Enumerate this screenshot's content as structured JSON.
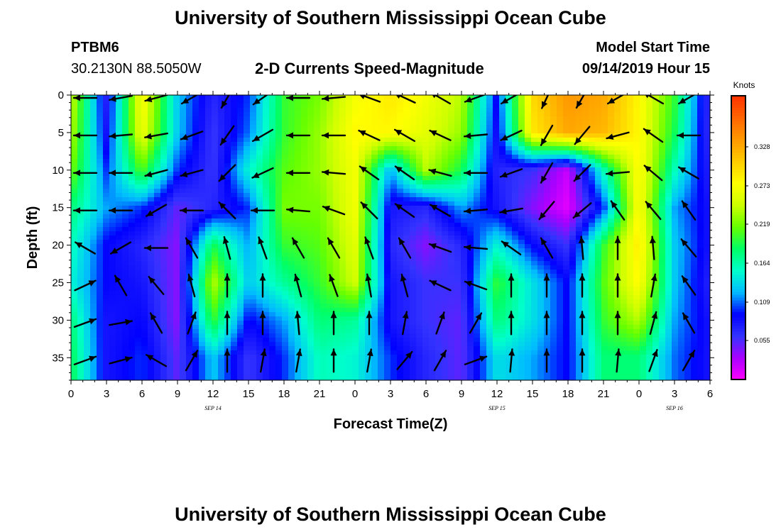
{
  "header": {
    "title": "University of Southern Mississippi Ocean Cube",
    "station": "PTBM6",
    "coords": "30.2130N 88.5050W",
    "plot_title": "2-D Currents Speed-Magnitude",
    "model_start_label": "Model Start Time",
    "model_start_value": "09/14/2019 Hour 15"
  },
  "footer": {
    "title": "University of Southern Mississippi Ocean Cube"
  },
  "colors": {
    "colormap": [
      "#ff00ff",
      "#aa00ff",
      "#3333ff",
      "#0000ff",
      "#00bbff",
      "#00ffcc",
      "#00ff66",
      "#66ff00",
      "#ccff00",
      "#ffff00",
      "#ffcc00",
      "#ff9900",
      "#ff6600",
      "#ff3300"
    ],
    "arrow": "#000000",
    "frame": "#000000"
  },
  "chart_data": {
    "type": "heatmap",
    "title": "2-D Currents Speed-Magnitude",
    "xlabel": "Forecast Time(Z)",
    "ylabel": "Depth (ft)",
    "colorbar_label": "Knots",
    "colorbar_ticks": [
      "0.055",
      "0.109",
      "0.164",
      "0.219",
      "0.273",
      "0.328"
    ],
    "colorbar_tick_values": [
      0.055,
      0.109,
      0.164,
      0.219,
      0.273,
      0.328
    ],
    "colorbar_range": [
      0.0,
      0.4
    ],
    "x_tick_labels": [
      "0",
      "3",
      "6",
      "9",
      "12",
      "15",
      "18",
      "21",
      "0",
      "3",
      "6",
      "9",
      "12",
      "15",
      "18",
      "21",
      "0",
      "3",
      "6"
    ],
    "x_range_hours": [
      0,
      54
    ],
    "date_labels": [
      {
        "text": "SEP 14",
        "hour": 12
      },
      {
        "text": "SEP 15",
        "hour": 36
      },
      {
        "text": "SEP 16",
        "hour": 51
      }
    ],
    "y_ticks": [
      "0",
      "5",
      "10",
      "15",
      "20",
      "25",
      "30",
      "35"
    ],
    "y_tick_values": [
      0,
      5,
      10,
      15,
      20,
      25,
      30,
      35
    ],
    "ylim": [
      0,
      38
    ],
    "y_reversed": true,
    "times_hours": [
      0,
      3,
      6,
      9,
      12,
      15,
      18,
      21,
      24,
      27,
      30,
      33,
      36,
      39,
      42,
      45,
      48,
      51,
      54
    ],
    "depths_ft": [
      0,
      5,
      10,
      15,
      20,
      25,
      30,
      35
    ],
    "speed_knots": [
      [
        0.25,
        0.07,
        0.28,
        0.13,
        0.07,
        0.1,
        0.2,
        0.22,
        0.27,
        0.29,
        0.27,
        0.24,
        0.09,
        0.3,
        0.34,
        0.33,
        0.28,
        0.2,
        0.06
      ],
      [
        0.24,
        0.08,
        0.27,
        0.13,
        0.06,
        0.11,
        0.2,
        0.23,
        0.28,
        0.28,
        0.26,
        0.23,
        0.08,
        0.29,
        0.33,
        0.32,
        0.28,
        0.19,
        0.06
      ],
      [
        0.22,
        0.1,
        0.21,
        0.1,
        0.06,
        0.15,
        0.21,
        0.23,
        0.27,
        0.12,
        0.24,
        0.19,
        0.07,
        0.06,
        0.02,
        0.16,
        0.28,
        0.16,
        0.07
      ],
      [
        0.18,
        0.12,
        0.1,
        0.05,
        0.07,
        0.1,
        0.22,
        0.22,
        0.27,
        0.08,
        0.07,
        0.12,
        0.08,
        0.04,
        0.01,
        0.1,
        0.28,
        0.12,
        0.08
      ],
      [
        0.16,
        0.09,
        0.07,
        0.04,
        0.19,
        0.12,
        0.2,
        0.21,
        0.26,
        0.07,
        0.04,
        0.07,
        0.15,
        0.09,
        0.06,
        0.2,
        0.29,
        0.13,
        0.08
      ],
      [
        0.15,
        0.09,
        0.08,
        0.04,
        0.24,
        0.13,
        0.17,
        0.2,
        0.25,
        0.08,
        0.06,
        0.06,
        0.2,
        0.14,
        0.09,
        0.21,
        0.28,
        0.13,
        0.07
      ],
      [
        0.18,
        0.08,
        0.09,
        0.04,
        0.2,
        0.09,
        0.12,
        0.18,
        0.17,
        0.08,
        0.06,
        0.05,
        0.18,
        0.14,
        0.09,
        0.2,
        0.24,
        0.12,
        0.08
      ],
      [
        0.19,
        0.08,
        0.1,
        0.05,
        0.13,
        0.06,
        0.1,
        0.16,
        0.15,
        0.1,
        0.07,
        0.05,
        0.14,
        0.12,
        0.09,
        0.18,
        0.18,
        0.11,
        0.08
      ]
    ],
    "direction_deg": [
      [
        270,
        260,
        255,
        240,
        210,
        235,
        270,
        265,
        290,
        295,
        300,
        250,
        240,
        205,
        210,
        240,
        300,
        240,
        75
      ],
      [
        270,
        265,
        260,
        250,
        215,
        240,
        270,
        270,
        295,
        300,
        295,
        265,
        245,
        210,
        220,
        255,
        305,
        270,
        60
      ],
      [
        270,
        270,
        255,
        255,
        225,
        245,
        270,
        275,
        305,
        305,
        285,
        270,
        250,
        210,
        225,
        265,
        310,
        300,
        45
      ],
      [
        270,
        270,
        240,
        270,
        315,
        270,
        275,
        290,
        315,
        305,
        300,
        265,
        260,
        220,
        230,
        325,
        320,
        325,
        20
      ],
      [
        300,
        240,
        270,
        330,
        345,
        340,
        330,
        330,
        340,
        330,
        290,
        275,
        305,
        330,
        355,
        0,
        355,
        320,
        10
      ],
      [
        65,
        330,
        320,
        345,
        0,
        0,
        345,
        340,
        350,
        345,
        295,
        290,
        0,
        0,
        0,
        0,
        10,
        325,
        10
      ],
      [
        70,
        80,
        330,
        20,
        0,
        0,
        355,
        0,
        0,
        10,
        20,
        30,
        0,
        0,
        0,
        0,
        15,
        330,
        10
      ],
      [
        70,
        75,
        300,
        30,
        0,
        10,
        10,
        0,
        10,
        40,
        30,
        70,
        5,
        0,
        0,
        5,
        20,
        30,
        5
      ]
    ]
  }
}
